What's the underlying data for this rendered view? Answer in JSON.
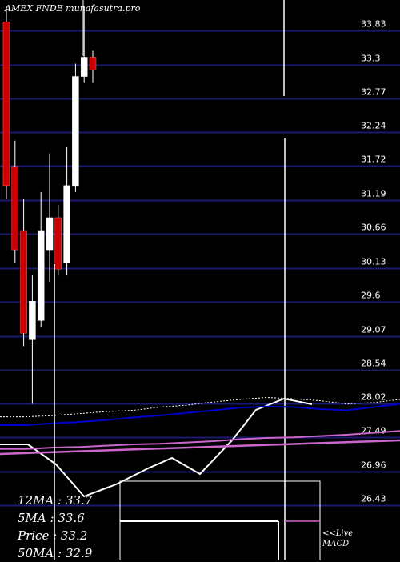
{
  "header": {
    "title": "AMEX  FNDE munafasutra.pro"
  },
  "stats": {
    "ma12": "12MA : 33.7",
    "ma5": "5MA : 33.6",
    "price": "Price   : 33.2",
    "ma50": "50MA : 32.9"
  },
  "macd_note": {
    "line1": "<<Live",
    "line2": "MACD"
  },
  "colors": {
    "background": "#000000",
    "grid": "#1a1a6e",
    "up_candle": "#ffffff",
    "down_candle": "#cc0000",
    "ma_white": "#ffffff",
    "ma_blue": "#0000cc",
    "ma_magenta": "#cc66cc"
  },
  "chart_data": {
    "type": "candlestick",
    "title": "AMEX  FNDE munafasutra.pro",
    "ylim": [
      26.0,
      34.2
    ],
    "y_ticks": [
      "33.83",
      "33.3",
      "32.77",
      "32.24",
      "31.72",
      "31.19",
      "30.66",
      "30.13",
      "29.6",
      "29.07",
      "28.54",
      "28.02",
      "27.49",
      "26.96",
      "26.43"
    ],
    "grid": true,
    "candles": [
      {
        "o": 33.85,
        "h": 34.1,
        "l": 31.1,
        "c": 31.3,
        "dir": "down"
      },
      {
        "o": 31.6,
        "h": 32.0,
        "l": 30.1,
        "c": 30.3,
        "dir": "down"
      },
      {
        "o": 30.6,
        "h": 31.1,
        "l": 28.8,
        "c": 29.0,
        "dir": "down"
      },
      {
        "o": 28.9,
        "h": 29.9,
        "l": 27.9,
        "c": 29.5,
        "dir": "up"
      },
      {
        "o": 29.2,
        "h": 31.2,
        "l": 29.1,
        "c": 30.6,
        "dir": "up"
      },
      {
        "o": 30.3,
        "h": 31.8,
        "l": 29.8,
        "c": 30.8,
        "dir": "up"
      },
      {
        "o": 30.8,
        "h": 31.0,
        "l": 29.9,
        "c": 30.0,
        "dir": "down"
      },
      {
        "o": 30.1,
        "h": 31.9,
        "l": 29.9,
        "c": 31.3,
        "dir": "up"
      },
      {
        "o": 31.3,
        "h": 33.2,
        "l": 31.2,
        "c": 33.0,
        "dir": "up"
      },
      {
        "o": 33.0,
        "h": 34.1,
        "l": 32.9,
        "c": 33.3,
        "dir": "up"
      },
      {
        "o": 33.3,
        "h": 33.4,
        "l": 32.9,
        "c": 33.1,
        "dir": "down"
      }
    ],
    "price_lines": {
      "ma_white": [
        27.7,
        27.7,
        27.72,
        27.75,
        27.78,
        27.8,
        27.85,
        27.88,
        27.93,
        27.97,
        28.0,
        27.98,
        27.95,
        27.9,
        27.92,
        27.97
      ],
      "ma_blue": [
        27.57,
        27.57,
        27.6,
        27.62,
        27.65,
        27.69,
        27.72,
        27.76,
        27.8,
        27.84,
        27.86,
        27.85,
        27.82,
        27.8,
        27.85,
        27.9
      ],
      "ma_magenta": [
        27.2,
        27.2,
        27.22,
        27.23,
        27.25,
        27.27,
        27.28,
        27.3,
        27.32,
        27.35,
        27.37,
        27.38,
        27.4,
        27.42,
        27.45,
        27.48
      ]
    }
  }
}
